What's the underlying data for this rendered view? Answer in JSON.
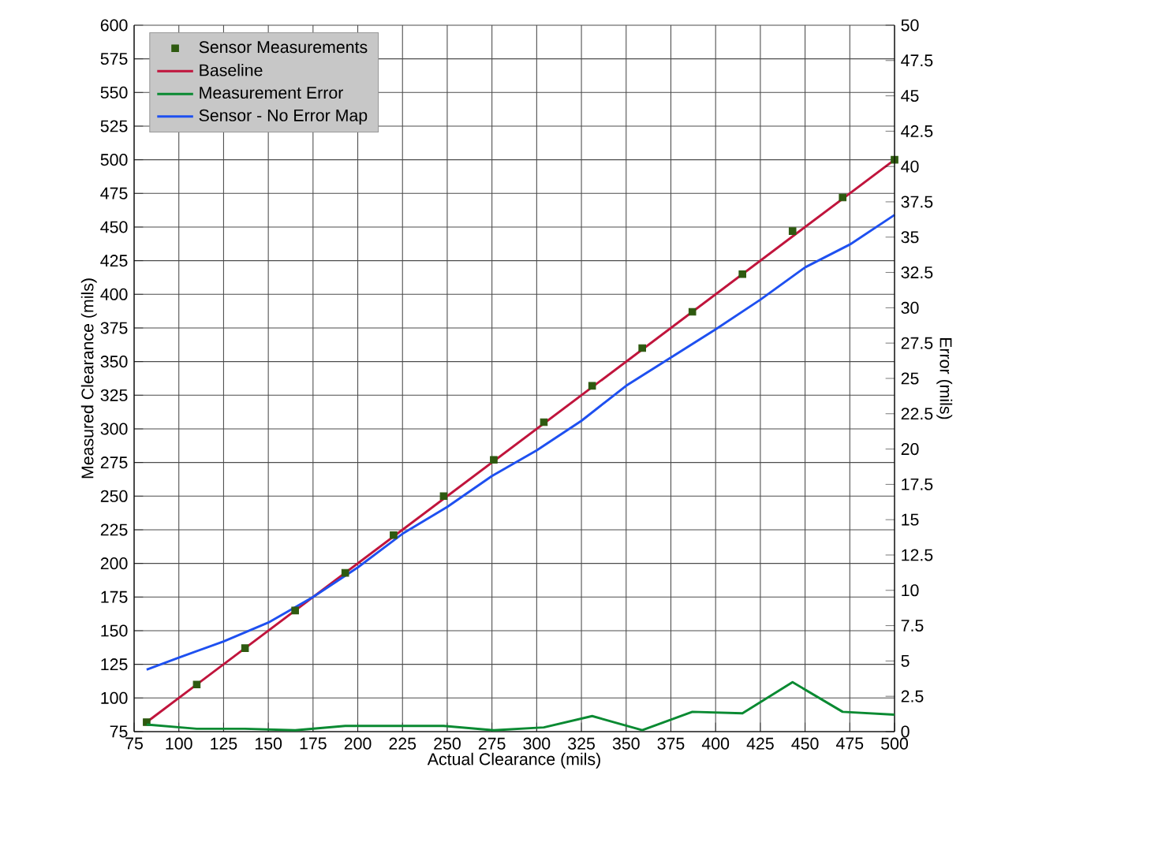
{
  "chart_data": {
    "type": "line",
    "xlabel": "Actual Clearance (mils)",
    "ylabel": "Measured Clearance (mils)",
    "y2label": "Error (mils)",
    "xlim": [
      75,
      500
    ],
    "xticks": [
      75,
      100,
      125,
      150,
      175,
      200,
      225,
      250,
      275,
      300,
      325,
      350,
      375,
      400,
      425,
      450,
      475,
      500
    ],
    "ylim": [
      75,
      600
    ],
    "yticks": [
      75,
      100,
      125,
      150,
      175,
      200,
      225,
      250,
      275,
      300,
      325,
      350,
      375,
      400,
      425,
      450,
      475,
      500,
      525,
      550,
      575,
      600
    ],
    "y2lim": [
      0,
      50
    ],
    "y2ticks": [
      0,
      2.5,
      5,
      7.5,
      10,
      12.5,
      15,
      17.5,
      20,
      22.5,
      25,
      27.5,
      30,
      32.5,
      35,
      37.5,
      40,
      42.5,
      45,
      47.5,
      50
    ],
    "grid": true,
    "legend": "top left",
    "series": [
      {
        "name": "Sensor Measurements",
        "type": "scatter",
        "marker": "square",
        "color": "#2e5a10",
        "x": [
          82,
          110,
          137,
          165,
          193,
          220,
          248,
          276,
          304,
          331,
          359,
          387,
          415,
          443,
          471,
          500
        ],
        "values": [
          82,
          110,
          137,
          165,
          193,
          221,
          250,
          277,
          305,
          332,
          360,
          387,
          415,
          447,
          472,
          500
        ]
      },
      {
        "name": "Baseline",
        "color": "#c0143c",
        "x": [
          82,
          500
        ],
        "values": [
          82,
          500
        ]
      },
      {
        "name": "Measurement Error",
        "axis": "y2",
        "color": "#0a8a32",
        "x": [
          82,
          110,
          137,
          165,
          193,
          220,
          248,
          276,
          304,
          331,
          359,
          387,
          415,
          443,
          471,
          500
        ],
        "values": [
          0.5,
          0.2,
          0.2,
          0.1,
          0.4,
          0.4,
          0.4,
          0.1,
          0.3,
          1.1,
          0.1,
          1.4,
          1.3,
          3.5,
          1.4,
          1.2
        ]
      },
      {
        "name": "Sensor - No Error Map",
        "color": "#1e50f0",
        "x": [
          82,
          100,
          125,
          150,
          175,
          200,
          225,
          250,
          275,
          300,
          325,
          350,
          375,
          400,
          425,
          450,
          475,
          500
        ],
        "values": [
          121,
          130,
          142,
          156,
          175,
          197,
          222,
          242,
          265,
          284,
          306,
          332,
          353,
          374,
          396,
          420,
          437,
          459
        ]
      }
    ]
  }
}
